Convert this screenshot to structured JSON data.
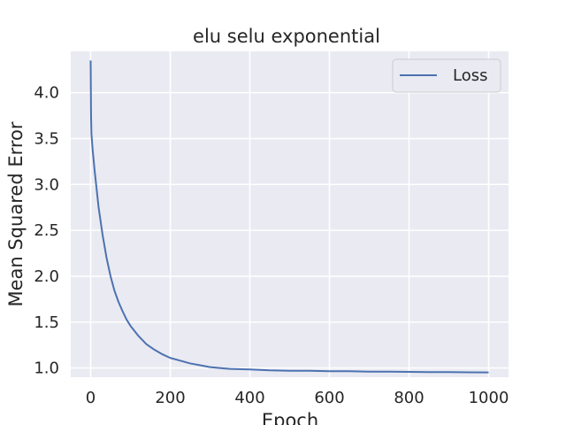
{
  "chart_data": {
    "type": "line",
    "title": "elu selu exponential",
    "xlabel": "Epoch",
    "ylabel": "Mean Squared Error",
    "xlim": [
      -50,
      1050
    ],
    "ylim": [
      0.9,
      4.45
    ],
    "xticks": [
      0,
      200,
      400,
      600,
      800,
      1000
    ],
    "yticks": [
      1.0,
      1.5,
      2.0,
      2.5,
      3.0,
      3.5,
      4.0
    ],
    "xtick_labels": [
      "0",
      "200",
      "400",
      "600",
      "800",
      "1000"
    ],
    "ytick_labels": [
      "1.0",
      "1.5",
      "2.0",
      "2.5",
      "3.0",
      "3.5",
      "4.0"
    ],
    "grid": true,
    "legend_position": "top-right",
    "background_color": "#eaeaf2",
    "series": [
      {
        "name": "Loss",
        "color": "#4c72b0",
        "x": [
          0,
          1,
          2,
          5,
          10,
          15,
          20,
          30,
          40,
          50,
          60,
          70,
          80,
          90,
          100,
          120,
          140,
          160,
          180,
          200,
          225,
          250,
          275,
          300,
          350,
          400,
          450,
          500,
          550,
          600,
          650,
          700,
          750,
          800,
          850,
          900,
          950,
          1000
        ],
        "y": [
          4.35,
          3.75,
          3.55,
          3.38,
          3.15,
          2.95,
          2.75,
          2.45,
          2.2,
          2.0,
          1.84,
          1.72,
          1.62,
          1.53,
          1.46,
          1.35,
          1.26,
          1.2,
          1.15,
          1.11,
          1.08,
          1.05,
          1.03,
          1.01,
          0.99,
          0.985,
          0.975,
          0.97,
          0.97,
          0.965,
          0.965,
          0.96,
          0.96,
          0.958,
          0.955,
          0.955,
          0.953,
          0.952
        ]
      }
    ]
  }
}
